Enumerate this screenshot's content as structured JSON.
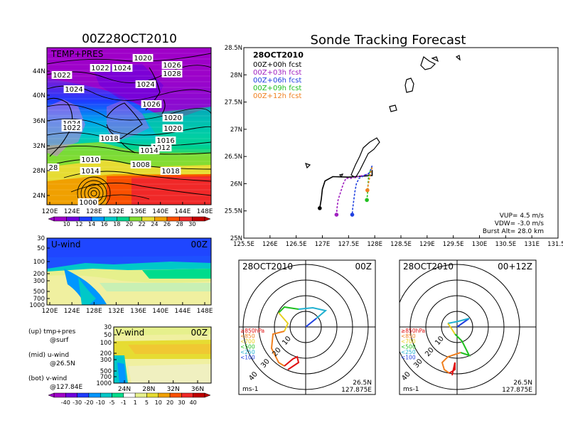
{
  "chart_data": [
    {
      "type": "heatmap",
      "title": "00Z28OCT2010",
      "panel_label": "TEMP+PRES",
      "x_ticks": [
        "120E",
        "124E",
        "128E",
        "132E",
        "136E",
        "140E",
        "144E",
        "148E"
      ],
      "y_ticks": [
        "44N",
        "40N",
        "36N",
        "32N",
        "28N",
        "24N"
      ],
      "isobar_labels": [
        "1020",
        "1022",
        "1024",
        "1026",
        "1022",
        "1028",
        "1024",
        "1024",
        "1026",
        "1024",
        "1022",
        "1020",
        "1020",
        "1018",
        "1016",
        "1012",
        "1014",
        "1010",
        "1008",
        "1014",
        "1018",
        "28",
        "1000"
      ],
      "colorbar": {
        "labels": [
          "10",
          "12",
          "14",
          "16",
          "18",
          "20",
          "22",
          "24",
          "26",
          "28",
          "30"
        ],
        "colors": [
          "#a000c8",
          "#6e00dc",
          "#1e3cff",
          "#0096ff",
          "#00c8c8",
          "#00d28c",
          "#82dc32",
          "#e6dc32",
          "#f0a000",
          "#fa5000",
          "#f02828",
          "#c00000"
        ]
      }
    },
    {
      "type": "heatmap",
      "panel_label": "U-wind",
      "time_label": "00Z",
      "x_ticks": [
        "120E",
        "124E",
        "128E",
        "132E",
        "136E",
        "140E",
        "144E",
        "148E"
      ],
      "y_ticks": [
        "30",
        "50",
        "100",
        "200",
        "300",
        "500",
        "700",
        "1000"
      ]
    },
    {
      "type": "heatmap",
      "panel_label": "V-wind",
      "time_label": "00Z",
      "x_ticks": [
        "24N",
        "28N",
        "32N",
        "36N"
      ],
      "y_ticks": [
        "30",
        "50",
        "100",
        "200",
        "300",
        "500",
        "700",
        "1000"
      ],
      "colorbar": {
        "labels": [
          "-40",
          "-30",
          "-20",
          "-10",
          "-5",
          "-1",
          "1",
          "5",
          "10",
          "20",
          "30",
          "40"
        ],
        "colors": [
          "#a000c8",
          "#6e00dc",
          "#1e3cff",
          "#0096ff",
          "#00c8c8",
          "#00dc8c",
          "#ffffff",
          "#e6f08c",
          "#e6dc32",
          "#f0a000",
          "#fa5000",
          "#f02828",
          "#c00000"
        ]
      }
    },
    {
      "type": "line",
      "title": "Sonde Tracking Forecast",
      "date_label": "28OCT2010",
      "x_ticks": [
        "125.5E",
        "126E",
        "126.5E",
        "127E",
        "127.5E",
        "128E",
        "128.5E",
        "129E",
        "129.5E",
        "130E",
        "130.5E",
        "131E",
        "131.5E"
      ],
      "y_ticks": [
        "28.5N",
        "28N",
        "27.5N",
        "27N",
        "26.5N",
        "26N",
        "25.5N",
        "25N"
      ],
      "xlim": [
        125.5,
        131.5
      ],
      "ylim": [
        25,
        28.5
      ],
      "series": [
        {
          "name": "00Z+00h fcst",
          "color": "#000000",
          "x": [
            127.95,
            127.95,
            127.5,
            127.2,
            127.05,
            127.0,
            126.98,
            126.95
          ],
          "y": [
            26.25,
            26.15,
            26.12,
            26.13,
            26.05,
            25.9,
            25.72,
            25.55
          ]
        },
        {
          "name": "00Z+03h fcst",
          "color": "#a020c0",
          "x": [
            127.95,
            127.9,
            127.55,
            127.45,
            127.4,
            127.35,
            127.3,
            127.28,
            127.27
          ],
          "y": [
            26.3,
            26.18,
            26.1,
            26.1,
            26.0,
            25.85,
            25.7,
            25.55,
            25.43
          ]
        },
        {
          "name": "00Z+06h fcst",
          "color": "#2040e0",
          "x": [
            127.95,
            127.9,
            127.7,
            127.65,
            127.62,
            127.6,
            127.58,
            127.57
          ],
          "y": [
            26.33,
            26.2,
            26.1,
            26.0,
            25.85,
            25.7,
            25.55,
            25.43
          ]
        },
        {
          "name": "00Z+09h fcst",
          "color": "#20c020",
          "x": [
            127.95,
            127.9,
            127.88,
            127.87,
            127.86,
            127.85
          ],
          "y": [
            26.3,
            26.2,
            26.1,
            25.95,
            25.8,
            25.7
          ]
        },
        {
          "name": "00Z+12h fcst",
          "color": "#f08020",
          "x": [
            127.95,
            127.92,
            127.9,
            127.88,
            127.87,
            127.86
          ],
          "y": [
            26.3,
            26.2,
            26.1,
            26.0,
            25.95,
            25.88
          ]
        }
      ],
      "info": {
        "vup": "VUP=  4.5 m/s",
        "vdw": "VDW= -3.0 m/s",
        "burst": "Burst Alt= 28.0 km"
      }
    },
    {
      "type": "line",
      "date_label": "28OCT2010",
      "time_label": "00Z",
      "ring_labels": [
        "10",
        "20",
        "30",
        "40"
      ],
      "units": "ms-1",
      "location": [
        "26.5N",
        "127.875E"
      ],
      "levels": [
        {
          "label": "≥850hPa",
          "color": "#e01010"
        },
        {
          "label": "<850",
          "color": "#f08020"
        },
        {
          "label": "<700",
          "color": "#e8d020"
        },
        {
          "label": "<500",
          "color": "#20c020"
        },
        {
          "label": "<250",
          "color": "#20b0d0"
        },
        {
          "label": "<100",
          "color": "#2040e0"
        }
      ]
    },
    {
      "type": "line",
      "date_label": "28OCT2010",
      "time_label": "00+12Z",
      "ring_labels": [
        "10",
        "20",
        "30",
        "40"
      ],
      "units": "ms-1",
      "location": [
        "26.5N",
        "127.875E"
      ],
      "levels": [
        {
          "label": "≥850hPa",
          "color": "#e01010"
        },
        {
          "label": "<850",
          "color": "#f08020"
        },
        {
          "label": "<700",
          "color": "#e8d020"
        },
        {
          "label": "<500",
          "color": "#20c020"
        },
        {
          "label": "<250",
          "color": "#20b0d0"
        },
        {
          "label": "<100",
          "color": "#2040e0"
        }
      ]
    }
  ],
  "notes": [
    {
      "line1": "(up) tmp+pres",
      "line2": "@surf"
    },
    {
      "line1": "(mid) u-wind",
      "line2": "@26.5N"
    },
    {
      "line1": "(bot) v-wind",
      "line2": "@127.84E"
    }
  ]
}
